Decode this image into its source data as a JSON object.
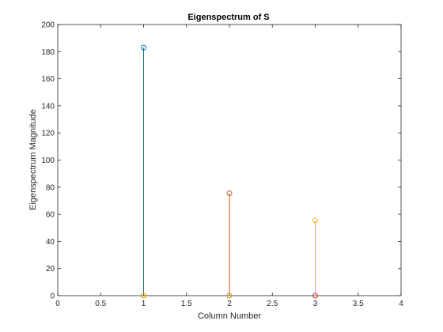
{
  "chart_data": {
    "type": "stem",
    "title": "Eigenspectrum of S",
    "xlabel": "Column Number",
    "ylabel": "Eigenspectrum Magnitude",
    "xlim": [
      0,
      4
    ],
    "ylim": [
      0,
      200
    ],
    "xticks": [
      0,
      0.5,
      1,
      1.5,
      2,
      2.5,
      3,
      3.5,
      4
    ],
    "yticks": [
      0,
      20,
      40,
      60,
      80,
      100,
      120,
      140,
      160,
      180,
      200
    ],
    "grid": false,
    "series": [
      {
        "x": [
          1,
          2,
          3
        ],
        "values": [
          183,
          0,
          0
        ],
        "color": "#0072BD"
      },
      {
        "x": [
          1,
          2,
          3
        ],
        "values": [
          0,
          75.5,
          0
        ],
        "color": "#D95319"
      },
      {
        "x": [
          1,
          2,
          3
        ],
        "values": [
          0,
          0,
          55.5
        ],
        "color": "#EDB120"
      }
    ]
  }
}
